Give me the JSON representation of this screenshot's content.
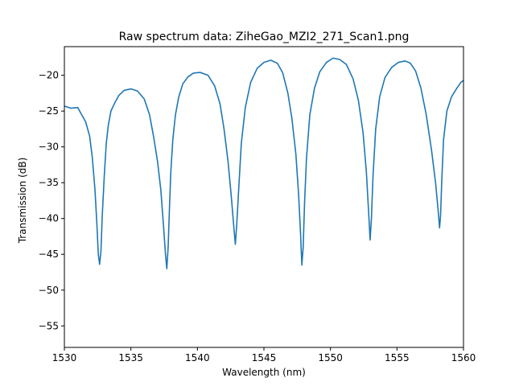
{
  "chart_data": {
    "type": "line",
    "title": "Raw spectrum data: ZiheGao_MZI2_271_Scan1.png",
    "xlabel": "Wavelength (nm)",
    "ylabel": "Transmission (dB)",
    "xlim": [
      1530,
      1560
    ],
    "ylim": [
      -58,
      -16
    ],
    "xticks": [
      1530,
      1535,
      1540,
      1545,
      1550,
      1555,
      1560
    ],
    "yticks": [
      -55,
      -50,
      -45,
      -40,
      -35,
      -30,
      -25,
      -20
    ],
    "ytick_labels": [
      "−55",
      "−50",
      "−45",
      "−40",
      "−35",
      "−30",
      "−25",
      "−20"
    ],
    "grid": false,
    "series": [
      {
        "color": "#1f77b4",
        "x": [
          1530.0,
          1530.5,
          1531.0,
          1531.3,
          1531.6,
          1531.9,
          1532.1,
          1532.3,
          1532.45,
          1532.55,
          1532.65,
          1532.75,
          1532.85,
          1533.0,
          1533.15,
          1533.3,
          1533.5,
          1533.8,
          1534.1,
          1534.5,
          1535.0,
          1535.5,
          1536.0,
          1536.4,
          1536.7,
          1537.0,
          1537.25,
          1537.45,
          1537.6,
          1537.7,
          1537.8,
          1537.9,
          1538.0,
          1538.15,
          1538.35,
          1538.6,
          1538.9,
          1539.3,
          1539.7,
          1540.2,
          1540.8,
          1541.3,
          1541.7,
          1542.0,
          1542.3,
          1542.55,
          1542.75,
          1542.85,
          1542.95,
          1543.1,
          1543.3,
          1543.6,
          1544.0,
          1544.5,
          1545.0,
          1545.5,
          1546.0,
          1546.4,
          1546.8,
          1547.1,
          1547.4,
          1547.6,
          1547.75,
          1547.85,
          1547.95,
          1548.05,
          1548.2,
          1548.45,
          1548.8,
          1549.2,
          1549.7,
          1550.2,
          1550.7,
          1551.2,
          1551.7,
          1552.1,
          1552.45,
          1552.7,
          1552.88,
          1552.98,
          1553.08,
          1553.2,
          1553.4,
          1553.7,
          1554.1,
          1554.6,
          1555.1,
          1555.6,
          1556.0,
          1556.4,
          1556.8,
          1557.2,
          1557.6,
          1557.9,
          1558.1,
          1558.2,
          1558.28,
          1558.36,
          1558.5,
          1558.75,
          1559.1,
          1559.5,
          1559.8,
          1560.0
        ],
        "y": [
          -24.3,
          -24.6,
          -24.5,
          -25.5,
          -26.5,
          -28.5,
          -31.5,
          -36.0,
          -41.0,
          -45.0,
          -46.4,
          -44.5,
          -39.5,
          -34.0,
          -29.5,
          -27.0,
          -25.0,
          -23.8,
          -22.8,
          -22.1,
          -21.9,
          -22.2,
          -23.3,
          -25.5,
          -28.5,
          -32.0,
          -36.0,
          -41.0,
          -45.0,
          -47.0,
          -44.0,
          -38.5,
          -33.5,
          -29.0,
          -25.5,
          -23.0,
          -21.2,
          -20.2,
          -19.7,
          -19.6,
          -20.0,
          -21.5,
          -24.0,
          -27.5,
          -32.0,
          -37.0,
          -41.5,
          -43.6,
          -41.0,
          -36.0,
          -29.5,
          -24.5,
          -21.0,
          -19.0,
          -18.2,
          -17.9,
          -18.3,
          -19.6,
          -22.5,
          -26.0,
          -31.0,
          -36.5,
          -42.0,
          -46.5,
          -44.0,
          -38.0,
          -31.5,
          -25.5,
          -21.8,
          -19.5,
          -18.2,
          -17.6,
          -17.8,
          -18.5,
          -20.5,
          -23.5,
          -28.0,
          -33.5,
          -39.5,
          -43.0,
          -40.0,
          -34.0,
          -27.5,
          -23.0,
          -20.3,
          -18.9,
          -18.2,
          -18.0,
          -18.3,
          -19.4,
          -21.8,
          -25.5,
          -30.5,
          -35.0,
          -39.0,
          -41.3,
          -39.5,
          -35.0,
          -29.0,
          -25.0,
          -23.0,
          -21.8,
          -21.0,
          -20.7
        ]
      }
    ]
  }
}
